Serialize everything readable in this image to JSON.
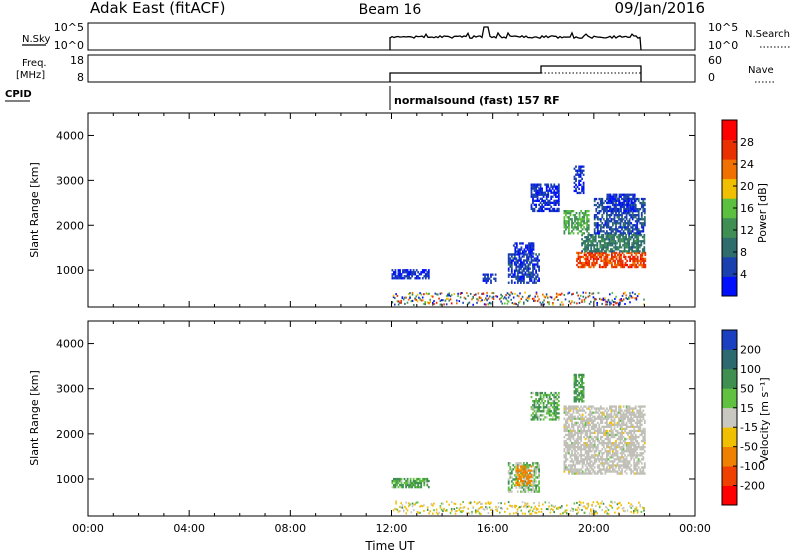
{
  "header": {
    "station": "Adak East (fitACF)",
    "beam": "Beam 16",
    "date": "09/Jan/2016"
  },
  "strips": {
    "nsky_label": "N.Sky",
    "nsky_ticks": [
      "10^5",
      "10^0"
    ],
    "nsearch_label": "N.Search",
    "nsearch_ticks": [
      "10^5",
      "10^0"
    ],
    "freq_label_1": "Freq.",
    "freq_label_2": "[MHz]",
    "freq_ticks": [
      "18",
      "8"
    ],
    "nave_label": "Nave",
    "nave_ticks": [
      "60",
      "0"
    ],
    "cpid_label": "CPID",
    "cpid_text": "normalsound (fast) 157 RF"
  },
  "colors": {
    "power": [
      "#0010ff",
      "#1a3faf",
      "#2f6d6d",
      "#3f8f55",
      "#5bc040",
      "#f0c000",
      "#f07000",
      "#e83000",
      "#ff0000"
    ],
    "velocity": [
      "#1a3fc0",
      "#2c6a70",
      "#3f9050",
      "#60c040",
      "#c8c8c0",
      "#f0c000",
      "#f08000",
      "#f04000",
      "#ff0000"
    ],
    "ground_scatter": "#c0c0b8"
  },
  "chart_data": [
    {
      "type": "heatmap",
      "panel": "power",
      "ylabel": "Slant Range [km]",
      "yticks": [
        "4000",
        "3000",
        "2000",
        "1000"
      ],
      "ylim": [
        180,
        4500
      ],
      "xlim": [
        0,
        24
      ],
      "colorbar_title": "Power [dB]",
      "colorbar_ticks": [
        "28",
        "24",
        "20",
        "16",
        "12",
        "8",
        "4"
      ],
      "colorbar_range": [
        0,
        32
      ],
      "regions": [
        {
          "t0": 12.0,
          "t1": 13.5,
          "r0": 800,
          "r1": 1000,
          "level": 4
        },
        {
          "t0": 15.6,
          "t1": 16.1,
          "r0": 700,
          "r1": 900,
          "level": 4
        },
        {
          "t0": 16.6,
          "t1": 17.8,
          "r0": 700,
          "r1": 1350,
          "level": 5
        },
        {
          "t0": 16.8,
          "t1": 17.6,
          "r0": 1350,
          "r1": 1600,
          "level": 4
        },
        {
          "t0": 17.5,
          "t1": 18.6,
          "r0": 2300,
          "r1": 2900,
          "level": 4
        },
        {
          "t0": 18.8,
          "t1": 19.8,
          "r0": 1800,
          "r1": 2300,
          "level": 14
        },
        {
          "t0": 19.3,
          "t1": 22.0,
          "r0": 1050,
          "r1": 1400,
          "level": 26
        },
        {
          "t0": 19.5,
          "t1": 22.0,
          "r0": 1400,
          "r1": 1800,
          "level": 10
        },
        {
          "t0": 20.0,
          "t1": 22.0,
          "r0": 1800,
          "r1": 2600,
          "level": 6
        },
        {
          "t0": 20.5,
          "t1": 21.6,
          "r0": 2300,
          "r1": 2700,
          "level": 4
        },
        {
          "t0": 19.2,
          "t1": 19.6,
          "r0": 2700,
          "r1": 3300,
          "level": 4
        }
      ]
    },
    {
      "type": "heatmap",
      "panel": "velocity",
      "ylabel": "Slant Range [km]",
      "xlabel": "Time UT",
      "yticks": [
        "4000",
        "3000",
        "2000",
        "1000"
      ],
      "ylim": [
        180,
        4500
      ],
      "xlim": [
        0,
        24
      ],
      "xticks": [
        "00:00",
        "04:00",
        "08:00",
        "12:00",
        "16:00",
        "20:00",
        "00:00"
      ],
      "colorbar_title": "Velocity [m s⁻¹]",
      "colorbar_ticks": [
        "200",
        "100",
        "50",
        "15",
        "-15",
        "-50",
        "-100",
        "-200"
      ],
      "colorbar_range": [
        -250,
        250
      ],
      "regions": [
        {
          "t0": 12.0,
          "t1": 13.5,
          "r0": 800,
          "r1": 1000,
          "value": 30
        },
        {
          "t0": 16.6,
          "t1": 17.8,
          "r0": 700,
          "r1": 1350,
          "value": 20
        },
        {
          "t0": 16.9,
          "t1": 17.5,
          "r0": 850,
          "r1": 1300,
          "value": -60
        },
        {
          "t0": 17.5,
          "t1": 18.6,
          "r0": 2300,
          "r1": 2900,
          "value": 30
        },
        {
          "t0": 18.8,
          "t1": 22.0,
          "r0": 1100,
          "r1": 2600,
          "value": 0,
          "gs": true
        },
        {
          "t0": 19.2,
          "t1": 19.6,
          "r0": 2700,
          "r1": 3300,
          "value": 40
        }
      ]
    }
  ]
}
